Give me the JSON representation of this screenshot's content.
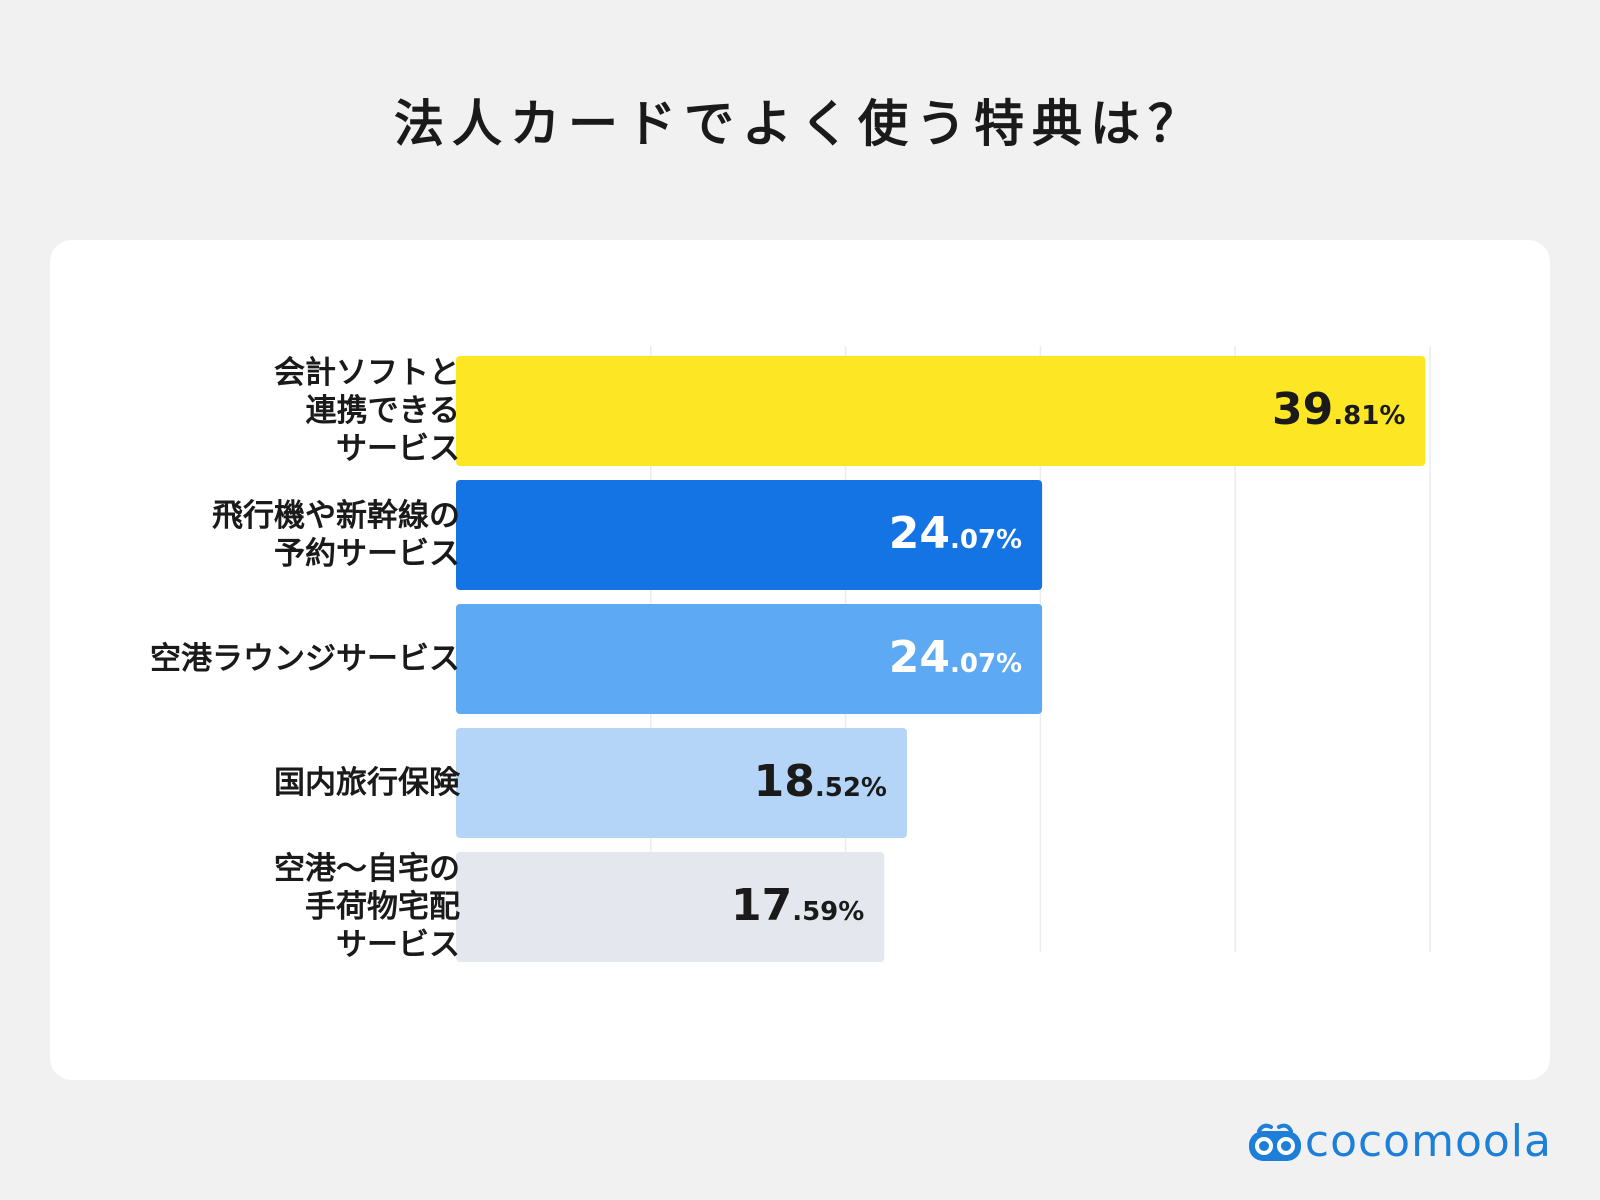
{
  "title": "法人カードでよく使う特典は？",
  "chart_data": {
    "type": "bar",
    "orientation": "horizontal",
    "title": "法人カードでよく使う特典は？",
    "categories": [
      [
        "会計ソフトと",
        "連携できる",
        "サービス"
      ],
      [
        "飛行機や新幹線の",
        "予約サービス"
      ],
      [
        "空港ラウンジサービス"
      ],
      [
        "国内旅行保険"
      ],
      [
        "空港〜自宅の",
        "手荷物宅配",
        "サービス"
      ]
    ],
    "values": [
      39.81,
      24.07,
      24.07,
      18.52,
      17.59
    ],
    "value_labels": [
      {
        "int": "39",
        "dec": ".81%"
      },
      {
        "int": "24",
        "dec": ".07%"
      },
      {
        "int": "24",
        "dec": ".07%"
      },
      {
        "int": "18",
        "dec": ".52%"
      },
      {
        "int": "17",
        "dec": ".59%"
      }
    ],
    "bar_colors": [
      "#fde725",
      "#1474e4",
      "#5ea9f3",
      "#b5d5f8",
      "#e4e8ee"
    ],
    "label_colors": [
      "#1a1a1a",
      "#ffffff",
      "#ffffff",
      "#1a1a1a",
      "#1a1a1a"
    ],
    "xlim": [
      0,
      40
    ],
    "gridlines": [
      8,
      16,
      24,
      32,
      40
    ],
    "grid": true,
    "legend": "none"
  },
  "brand": {
    "name": "cocomoola",
    "color": "#1e7fd8",
    "icon": "glasses-logo-icon"
  }
}
